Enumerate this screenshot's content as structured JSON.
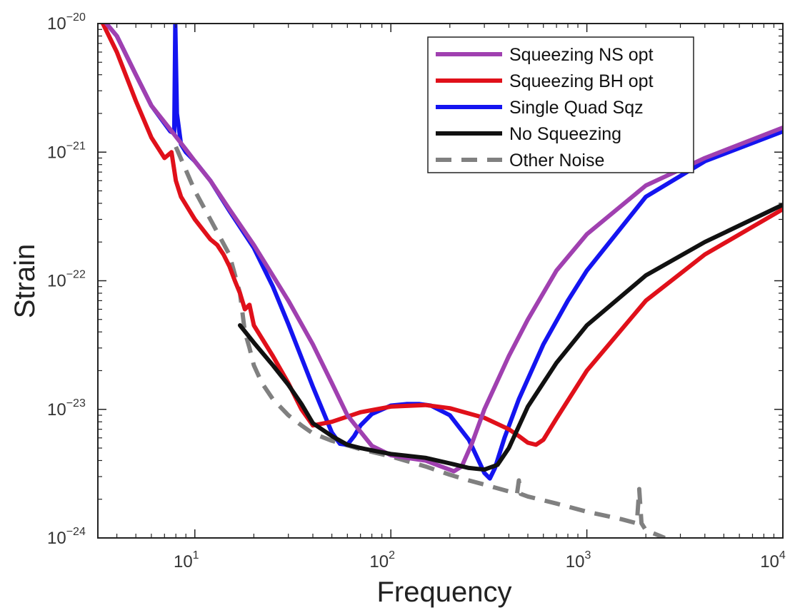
{
  "chart_data": {
    "type": "line",
    "xlabel": "Frequency",
    "ylabel": "Strain",
    "x_scale": "log",
    "y_scale": "log",
    "xlim": [
      3.2,
      10000
    ],
    "ylim": [
      1e-24,
      1e-20
    ],
    "grid": false,
    "legend_position": "top-right",
    "x_ticks": [
      {
        "value": 10,
        "base": "10",
        "exp": "1"
      },
      {
        "value": 100,
        "base": "10",
        "exp": "2"
      },
      {
        "value": 1000,
        "base": "10",
        "exp": "3"
      },
      {
        "value": 10000,
        "base": "10",
        "exp": "4"
      }
    ],
    "y_ticks": [
      {
        "value": 1e-24,
        "base": "10",
        "exp": "−24"
      },
      {
        "value": 1e-23,
        "base": "10",
        "exp": "−23"
      },
      {
        "value": 1e-22,
        "base": "10",
        "exp": "−22"
      },
      {
        "value": 1e-21,
        "base": "10",
        "exp": "−21"
      },
      {
        "value": 1e-20,
        "base": "10",
        "exp": "−20"
      }
    ],
    "series": [
      {
        "name": "Squeezing NS opt",
        "color": "#a040b0",
        "dash": "solid",
        "x": [
          3.2,
          4,
          5,
          6,
          7.5,
          9,
          10,
          12,
          15,
          20,
          30,
          40,
          50,
          60,
          80,
          100,
          120,
          150,
          180,
          210,
          230,
          260,
          300,
          400,
          500,
          700,
          1000,
          2000,
          4000,
          10000
        ],
        "y": [
          1.2e-20,
          8e-21,
          4e-21,
          2.3e-21,
          1.5e-21,
          1.05e-21,
          8.5e-22,
          6e-22,
          3.6e-22,
          1.9e-22,
          7e-23,
          3.2e-23,
          1.6e-23,
          9e-24,
          5.2e-24,
          4.4e-24,
          4.2e-24,
          4e-24,
          3.6e-24,
          3.3e-24,
          3.6e-24,
          5.5e-24,
          1e-23,
          2.6e-23,
          5e-23,
          1.2e-22,
          2.3e-22,
          5.5e-22,
          9e-22,
          1.55e-21
        ]
      },
      {
        "name": "Squeezing BH opt",
        "color": "#e0101a",
        "dash": "solid",
        "x": [
          3.2,
          4,
          5,
          6,
          7,
          7.6,
          8,
          8.5,
          10,
          12,
          13,
          14,
          15,
          16,
          17,
          18,
          19,
          20,
          25,
          30,
          35,
          40,
          50,
          70,
          100,
          150,
          200,
          300,
          400,
          450,
          500,
          550,
          600,
          700,
          1000,
          2000,
          4000,
          10000
        ],
        "y": [
          1.2e-20,
          6e-21,
          2.5e-21,
          1.3e-21,
          9e-22,
          1e-21,
          6e-22,
          4.5e-22,
          3e-22,
          2.1e-22,
          1.9e-22,
          1.6e-22,
          1.3e-22,
          1e-22,
          8e-23,
          6e-23,
          6.5e-23,
          4.5e-23,
          2.6e-23,
          1.6e-23,
          1e-23,
          7.5e-24,
          8e-24,
          9.5e-24,
          1.05e-23,
          1.08e-23,
          1.02e-23,
          8.6e-24,
          7e-24,
          6.2e-24,
          5.5e-24,
          5.3e-24,
          5.8e-24,
          8.5e-24,
          2e-23,
          7e-23,
          1.6e-22,
          3.6e-22
        ]
      },
      {
        "name": "Single Quad Sqz",
        "color": "#1414f0",
        "dash": "solid",
        "x": [
          3.2,
          4,
          5,
          6,
          7.5,
          7.85,
          7.95,
          8.1,
          8.5,
          9,
          10,
          12,
          15,
          20,
          25,
          30,
          40,
          50,
          55,
          60,
          65,
          70,
          80,
          100,
          120,
          140,
          160,
          200,
          250,
          300,
          320,
          340,
          380,
          450,
          600,
          800,
          1000,
          2000,
          4000,
          10000
        ],
        "y": [
          1.2e-20,
          8e-21,
          4e-21,
          2.3e-21,
          1.45e-21,
          1.4e-21,
          1e-20,
          2e-21,
          1.15e-21,
          1e-21,
          8.5e-22,
          6e-22,
          3.5e-22,
          1.8e-22,
          9e-23,
          4.6e-23,
          1.5e-23,
          6.6e-24,
          5.4e-24,
          5.3e-24,
          6.2e-24,
          7.5e-24,
          9.2e-24,
          1.07e-23,
          1.1e-23,
          1.1e-23,
          1.07e-23,
          9e-24,
          5.8e-24,
          3.2e-24,
          2.9e-24,
          3.5e-24,
          6e-24,
          1.2e-23,
          3.2e-23,
          7e-23,
          1.2e-22,
          4.5e-22,
          8.5e-22,
          1.45e-21
        ]
      },
      {
        "name": "No Squeezing",
        "color": "#111111",
        "dash": "solid",
        "x": [
          17,
          20,
          25,
          30,
          35,
          40,
          50,
          60,
          70,
          80,
          100,
          150,
          200,
          250,
          300,
          350,
          400,
          500,
          700,
          1000,
          2000,
          4000,
          10000
        ],
        "y": [
          4.5e-23,
          3.3e-23,
          2.2e-23,
          1.55e-23,
          1.1e-23,
          7.8e-24,
          6.2e-24,
          5.3e-24,
          5e-24,
          4.8e-24,
          4.5e-24,
          4.2e-24,
          3.8e-24,
          3.5e-24,
          3.4e-24,
          3.7e-24,
          5e-24,
          1.05e-23,
          2.3e-23,
          4.5e-23,
          1.1e-22,
          2e-22,
          3.9e-22
        ]
      },
      {
        "name": "Other Noise",
        "color": "#808080",
        "dash": "dashed",
        "x": [
          8,
          10,
          12,
          15,
          17,
          18,
          19,
          20,
          22,
          25,
          30,
          35,
          40,
          50,
          70,
          100,
          150,
          200,
          250,
          300,
          400,
          440,
          450,
          460,
          500,
          700,
          1000,
          1500,
          1800,
          1850,
          1900,
          1950,
          2000,
          2500
        ],
        "y": [
          1.1e-21,
          5e-22,
          3e-22,
          1.6e-22,
          8e-23,
          4e-23,
          3e-23,
          2.2e-23,
          1.6e-23,
          1.2e-23,
          9e-24,
          7.5e-24,
          6.5e-24,
          5.7e-24,
          4.9e-24,
          4.3e-24,
          3.6e-24,
          3.1e-24,
          2.8e-24,
          2.6e-24,
          2.3e-24,
          2.2e-24,
          2.8e-24,
          2.2e-24,
          2.1e-24,
          1.85e-24,
          1.6e-24,
          1.4e-24,
          1.3e-24,
          2.4e-24,
          1.3e-24,
          1.22e-24,
          1.15e-24,
          1e-24
        ]
      }
    ]
  }
}
